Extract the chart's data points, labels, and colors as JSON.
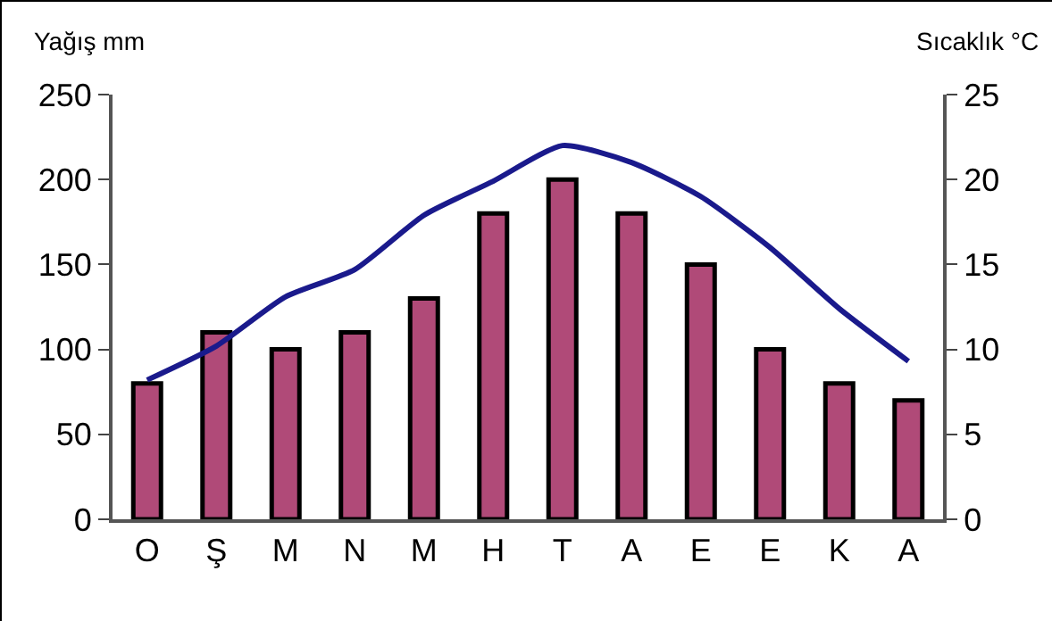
{
  "chart_data": {
    "type": "bar",
    "ylabel": "Yağış mm",
    "y2label": "Sıcaklık °C",
    "categories": [
      "O",
      "Ş",
      "M",
      "N",
      "M",
      "H",
      "T",
      "A",
      "E",
      "E",
      "K",
      "A"
    ],
    "series": [
      {
        "color": "#b04a78",
        "values": [
          80,
          110,
          100,
          110,
          130,
          180,
          200,
          180,
          150,
          100,
          80,
          70
        ]
      },
      {
        "type": "line",
        "axis": "y2",
        "color": "#1a1a8c",
        "values": [
          8.2,
          10.2,
          13.1,
          14.7,
          17.9,
          19.9,
          22.0,
          21.0,
          19.0,
          16.0,
          12.4,
          9.3
        ]
      }
    ],
    "ylim": [
      0,
      250
    ],
    "yticks": [
      0,
      50,
      100,
      150,
      200,
      250
    ],
    "y2lim": [
      0,
      25
    ],
    "y2ticks": [
      0,
      5,
      10,
      15,
      20,
      25
    ],
    "grid": false,
    "marker": "none",
    "line_style": "solid"
  }
}
